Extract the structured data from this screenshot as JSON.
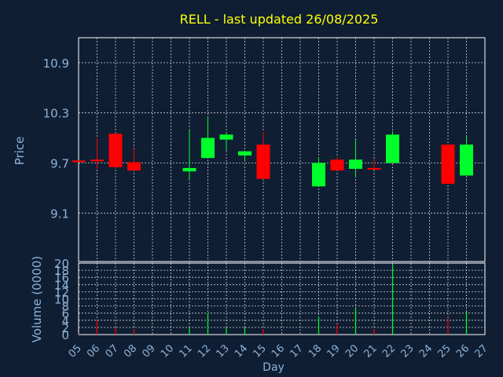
{
  "chart_data": {
    "type": "candlestick",
    "title": "RELL - last updated 26/08/2025",
    "xlabel": "Day",
    "ylabel_price": "Price",
    "ylabel_volume": "Volume (0000)",
    "price_ticks": [
      9.1,
      9.7,
      10.3,
      10.9
    ],
    "price_ylim": [
      8.52,
      11.2
    ],
    "volume_ticks": [
      0,
      2,
      4,
      6,
      8,
      10,
      12,
      14,
      16,
      18,
      20
    ],
    "volume_ylim": [
      0,
      20
    ],
    "x_ticks": [
      "05",
      "06",
      "07",
      "08",
      "09",
      "10",
      "11",
      "12",
      "13",
      "14",
      "15",
      "16",
      "17",
      "18",
      "19",
      "20",
      "21",
      "22",
      "23",
      "24",
      "25",
      "26",
      "27"
    ],
    "up_color": "#00ff2a",
    "down_color": "#ff0000",
    "candles": [
      {
        "day": "05",
        "open": 9.73,
        "high": 9.73,
        "low": 9.71,
        "close": 9.71,
        "volume": 0.2
      },
      {
        "day": "06",
        "open": 9.74,
        "high": 10.0,
        "low": 9.63,
        "close": 9.72,
        "volume": 4.0
      },
      {
        "day": "07",
        "open": 10.05,
        "high": 10.05,
        "low": 9.63,
        "close": 9.65,
        "volume": 2.0
      },
      {
        "day": "08",
        "open": 9.71,
        "high": 9.87,
        "low": 9.61,
        "close": 9.61,
        "volume": 1.5
      },
      {
        "day": "11",
        "open": 9.6,
        "high": 10.1,
        "low": 9.5,
        "close": 9.64,
        "volume": 2.0
      },
      {
        "day": "12",
        "open": 9.76,
        "high": 10.25,
        "low": 9.76,
        "close": 10.0,
        "volume": 6.0
      },
      {
        "day": "13",
        "open": 9.98,
        "high": 10.07,
        "low": 9.85,
        "close": 10.04,
        "volume": 2.0
      },
      {
        "day": "14",
        "open": 9.79,
        "high": 9.84,
        "low": 9.72,
        "close": 9.84,
        "volume": 2.0
      },
      {
        "day": "15",
        "open": 9.92,
        "high": 10.07,
        "low": 9.5,
        "close": 9.51,
        "volume": 1.5
      },
      {
        "day": "18",
        "open": 9.42,
        "high": 9.76,
        "low": 9.42,
        "close": 9.7,
        "volume": 5.0
      },
      {
        "day": "19",
        "open": 9.74,
        "high": 9.77,
        "low": 9.61,
        "close": 9.61,
        "volume": 3.0
      },
      {
        "day": "20",
        "open": 9.63,
        "high": 9.98,
        "low": 9.53,
        "close": 9.74,
        "volume": 7.5
      },
      {
        "day": "21",
        "open": 9.64,
        "high": 9.75,
        "low": 9.62,
        "close": 9.62,
        "volume": 1.5
      },
      {
        "day": "22",
        "open": 9.7,
        "high": 10.08,
        "low": 9.7,
        "close": 10.04,
        "volume": 19.5
      },
      {
        "day": "25",
        "open": 9.92,
        "high": 9.92,
        "low": 9.45,
        "close": 9.45,
        "volume": 4.5
      },
      {
        "day": "26",
        "open": 9.55,
        "high": 10.02,
        "low": 9.55,
        "close": 9.92,
        "volume": 6.5
      }
    ],
    "grid": true,
    "background": "#0f1e33",
    "title_color": "#ffff00",
    "axis_text_color": "#8fb3d9"
  }
}
